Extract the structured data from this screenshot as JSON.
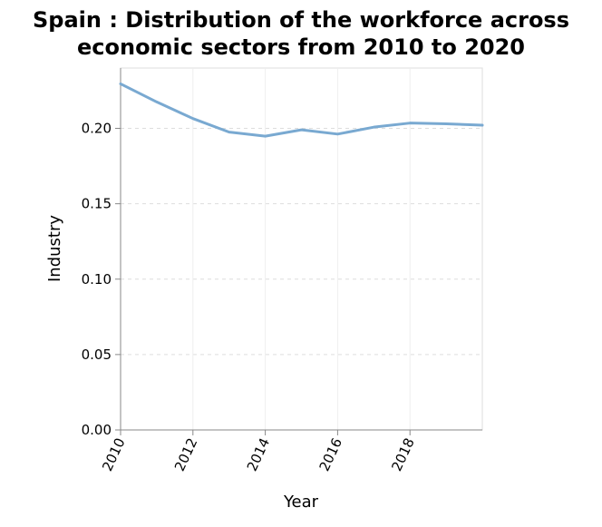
{
  "chart_data": {
    "type": "line",
    "title_lines": [
      "Spain : Distribution of the workforce across",
      "economic sectors from 2010 to 2020"
    ],
    "xlabel": "Year",
    "ylabel": "Industry",
    "xlim": [
      2010,
      2020
    ],
    "ylim": [
      0,
      0.24
    ],
    "x_ticks": [
      "2010",
      "2012",
      "2014",
      "2016",
      "2018"
    ],
    "y_ticks": [
      "0.00",
      "0.05",
      "0.10",
      "0.15",
      "0.20"
    ],
    "grid": "horizontal dashed",
    "series": [
      {
        "color": "#79a9d1",
        "x": [
          2010,
          2011,
          2012,
          2013,
          2014,
          2015,
          2016,
          2017,
          2018,
          2019,
          2020
        ],
        "values": [
          0.2295,
          0.2175,
          0.2065,
          0.1975,
          0.1948,
          0.199,
          0.1962,
          0.2008,
          0.2035,
          0.203,
          0.2021
        ]
      }
    ]
  }
}
